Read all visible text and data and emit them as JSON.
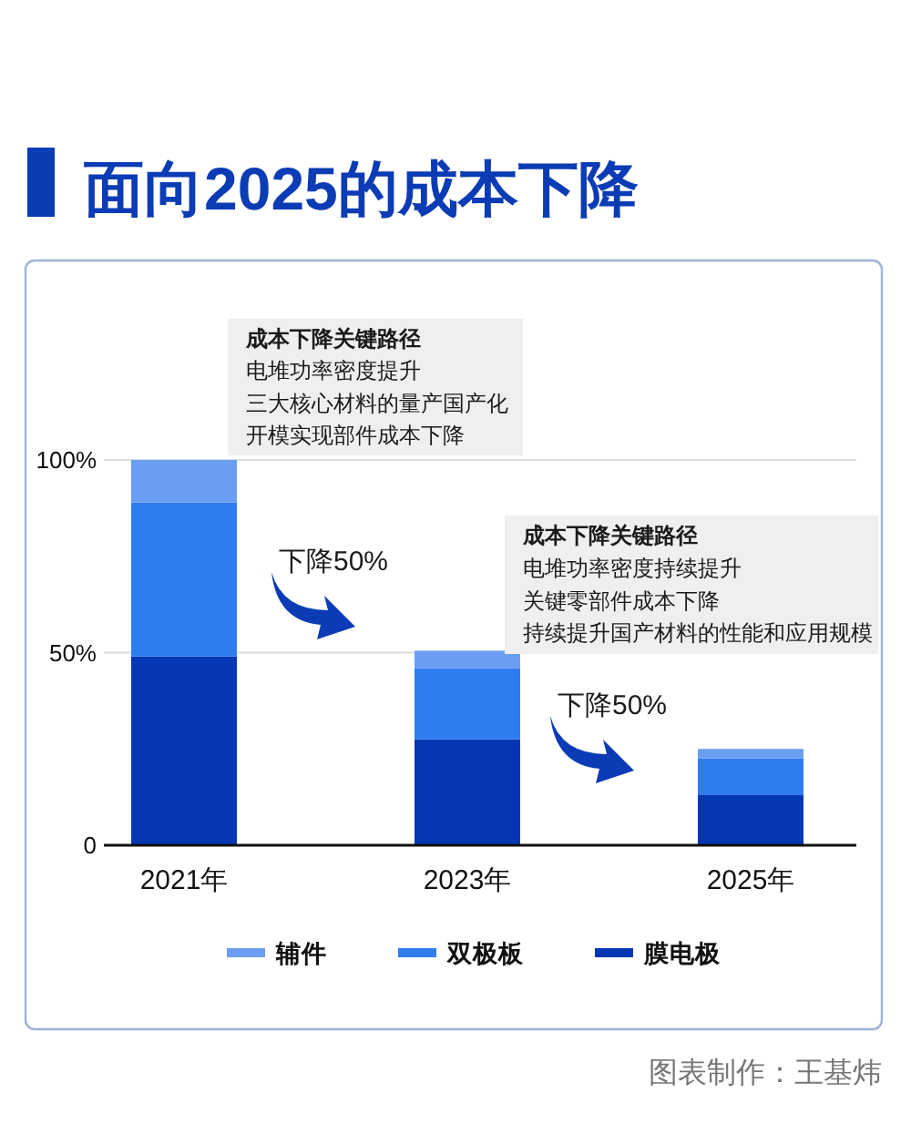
{
  "chart_data": {
    "type": "bar",
    "title": "面向2025的成本下降",
    "categories": [
      "2021年",
      "2023年",
      "2025年"
    ],
    "stacked": true,
    "series": [
      {
        "name": "膜电极",
        "color": "#0537b4",
        "values": [
          49,
          27.5,
          13
        ]
      },
      {
        "name": "双极板",
        "color": "#2e7cf0",
        "values": [
          40,
          18.5,
          9.5
        ]
      },
      {
        "name": "辅件",
        "color": "#6b9ef2",
        "values": [
          11,
          4.5,
          2.5
        ]
      }
    ],
    "ylim": [
      0,
      100
    ],
    "yticks": [
      0,
      {
        "value": 50,
        "label": "50%"
      },
      {
        "value": 100,
        "label": "100%"
      }
    ],
    "grid": "y",
    "legend": "bottom",
    "annotations": [
      "成本下降关键路径",
      "电堆功率密度提升",
      "三大核心材料的量产国产化",
      "开模实现部件成本下降",
      "下降50%",
      "成本下降关键路径",
      "电堆功率密度持续提升",
      "关键零部件成本下降",
      "持续提升国产材料的性能和应用规模",
      "下降50%",
      "图表制作：王基炜"
    ]
  }
}
